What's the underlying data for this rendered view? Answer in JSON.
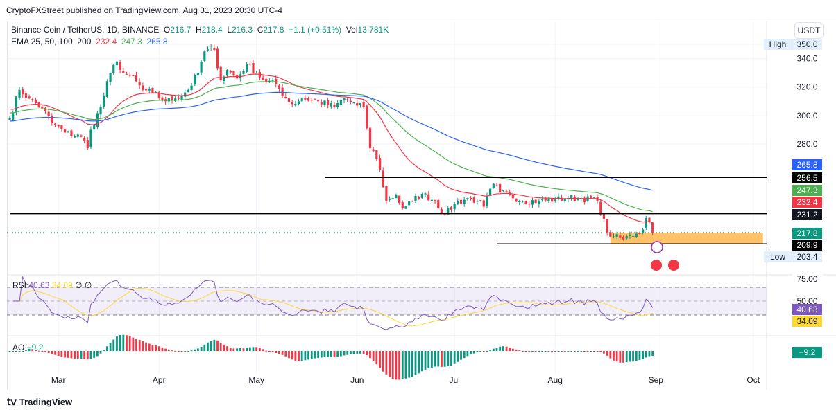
{
  "header": {
    "published": "CryptoFXStreet published on TradingView.com, Aug 31, 2023 20:30 UTC-4"
  },
  "legend": {
    "symbol": "Binance Coin / TetherUS, 1D, BINANCE",
    "o_label": "O",
    "o": "216.7",
    "h_label": "H",
    "h": "218.4",
    "l_label": "L",
    "l": "216.3",
    "c_label": "C",
    "c": "217.8",
    "change": "+1.1 (+0.51%)",
    "vol_label": "Vol",
    "vol": "13.781K",
    "ema_label": "EMA 25, 50, 100, 200",
    "ema25": "232.4",
    "ema50": "247.3",
    "ema100": "265.8"
  },
  "currency_button": "USDT",
  "colors": {
    "up": "#089981",
    "down": "#f23645",
    "ema25": "#f23645",
    "ema50": "#4caf50",
    "ema100": "#2962ff",
    "rsi": "#7e57c2",
    "rsi_ma": "#fdd835",
    "zone": "#ffb74d"
  },
  "chart_data": {
    "type": "candlestick",
    "title": "Binance Coin / TetherUS, 1D",
    "start_date": "2023-02-14",
    "close_anchors": [
      [
        0,
        298
      ],
      [
        3,
        318
      ],
      [
        6,
        312
      ],
      [
        10,
        305
      ],
      [
        13,
        295
      ],
      [
        17,
        288
      ],
      [
        22,
        285
      ],
      [
        24,
        277
      ],
      [
        25,
        290
      ],
      [
        28,
        306
      ],
      [
        31,
        330
      ],
      [
        33,
        338
      ],
      [
        35,
        330
      ],
      [
        37,
        328
      ],
      [
        41,
        318
      ],
      [
        44,
        316
      ],
      [
        48,
        310
      ],
      [
        51,
        312
      ],
      [
        55,
        318
      ],
      [
        58,
        330
      ],
      [
        60,
        345
      ],
      [
        63,
        346
      ],
      [
        65,
        325
      ],
      [
        67,
        332
      ],
      [
        70,
        326
      ],
      [
        73,
        336
      ],
      [
        76,
        330
      ],
      [
        78,
        325
      ],
      [
        82,
        322
      ],
      [
        85,
        312
      ],
      [
        87,
        308
      ],
      [
        90,
        312
      ],
      [
        95,
        310
      ],
      [
        100,
        306
      ],
      [
        103,
        312
      ],
      [
        107,
        307
      ],
      [
        109,
        306
      ],
      [
        111,
        277
      ],
      [
        112,
        275
      ],
      [
        114,
        262
      ],
      [
        116,
        240
      ],
      [
        119,
        244
      ],
      [
        121,
        235
      ],
      [
        124,
        240
      ],
      [
        127,
        245
      ],
      [
        131,
        240
      ],
      [
        134,
        230
      ],
      [
        137,
        238
      ],
      [
        141,
        242
      ],
      [
        144,
        240
      ],
      [
        146,
        236
      ],
      [
        149,
        252
      ],
      [
        151,
        246
      ],
      [
        154,
        244
      ],
      [
        158,
        240
      ],
      [
        163,
        240
      ],
      [
        168,
        241
      ],
      [
        172,
        242
      ],
      [
        176,
        242
      ],
      [
        181,
        240
      ],
      [
        184,
        218
      ],
      [
        186,
        215
      ],
      [
        189,
        213
      ],
      [
        191,
        216
      ],
      [
        193,
        217
      ],
      [
        195,
        220
      ],
      [
        196,
        228
      ],
      [
        197,
        225
      ],
      [
        198,
        217.8
      ]
    ],
    "ema_seed": {
      "ema25": 305,
      "ema50": 302,
      "ema100": 296
    },
    "ema_labels": [
      "232.4",
      "247.3",
      "265.8"
    ],
    "price_ticks": [
      "350.0",
      "340.0",
      "320.0",
      "300.0",
      "280.0"
    ],
    "price_range": [
      195,
      366
    ],
    "x_ticks": [
      {
        "label": "Mar",
        "day": 15
      },
      {
        "label": "Apr",
        "day": 46
      },
      {
        "label": "May",
        "day": 76
      },
      {
        "label": "Jun",
        "day": 107
      },
      {
        "label": "Jul",
        "day": 137
      },
      {
        "label": "Aug",
        "day": 168
      },
      {
        "label": "Sep",
        "day": 199
      },
      {
        "label": "Oct",
        "day": 229
      }
    ],
    "levels": [
      {
        "value": 256.5,
        "label": "256.5",
        "from_day": 97
      },
      {
        "value": 231.2,
        "label": "231.2",
        "from_day": 0
      },
      {
        "value": 209.9,
        "label": "209.9",
        "from_day": 150
      }
    ],
    "zone": {
      "low": 209.9,
      "high": 217.8,
      "from_day": 185,
      "to_day": 232
    },
    "high": {
      "label": "High",
      "value": "350.0"
    },
    "low": {
      "label": "Low",
      "value": "203.4"
    },
    "last_price": "217.8",
    "rsi": {
      "label": "RSI",
      "value": "40.63",
      "ma": "34.09",
      "extra1": "∅",
      "extra2": "∅",
      "ticks": [
        "75.00",
        "50.00"
      ],
      "last": "40.63",
      "ma_last": "34.09"
    },
    "ao": {
      "label": "AO",
      "value": "−9.2",
      "last": "−9.2"
    }
  },
  "footer": {
    "brand": "TradingView"
  }
}
